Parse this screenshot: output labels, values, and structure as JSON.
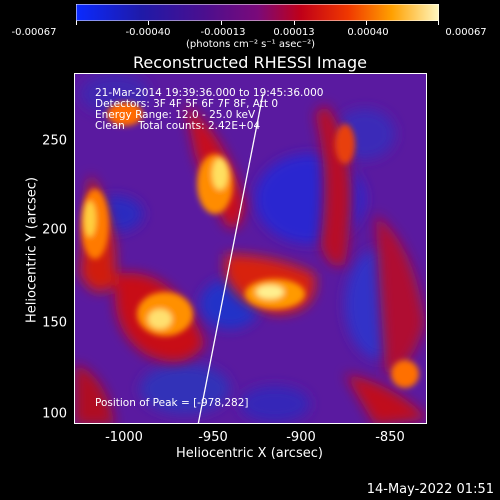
{
  "colorbar": {
    "ticks": [
      "-0.00067",
      "-0.00040",
      "-0.00013",
      "0.00013",
      "0.00040",
      "0.00067"
    ],
    "units": "(photons cm⁻² s⁻¹ asec⁻²)"
  },
  "title": "Reconstructed RHESSI Image",
  "info": {
    "line1": "21-Mar-2014 19:39:36.000 to 19:45:36.000",
    "line2": "Detectors: 3F 4F 5F 6F 7F 8F, Att 0",
    "line3": "Energy Range: 12.0 - 25.0 keV",
    "line4": "Clean    Total counts: 2.42E+04",
    "peak": "Position of Peak = [-978,282]"
  },
  "axes": {
    "xlabel": "Heliocentric X (arcsec)",
    "ylabel": "Heliocentric Y (arcsec)",
    "xticks": [
      "-1000",
      "-950",
      "-900",
      "-850"
    ],
    "yticks": [
      "250",
      "200",
      "150",
      "100"
    ]
  },
  "footer": "14-May-2022 01:51",
  "colors": {
    "background": "#000000",
    "foreground": "#ffffff"
  }
}
